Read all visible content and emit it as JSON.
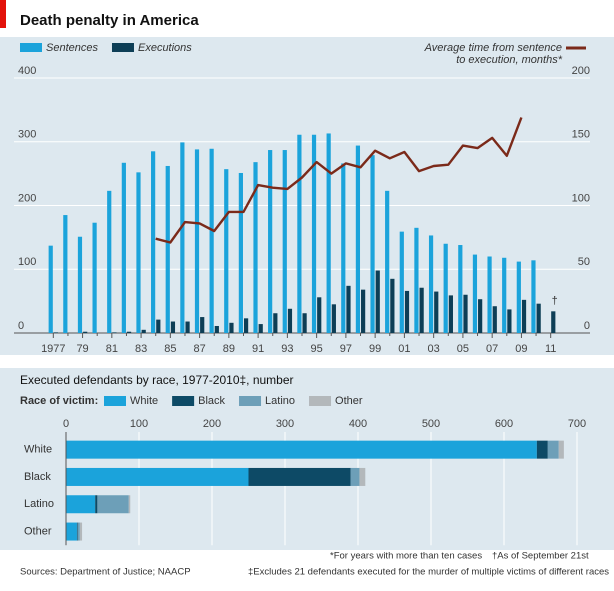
{
  "title": "Death penalty in America",
  "footnotes": [
    "*For years with more than ten cases",
    "†As of September 21st",
    "Sources: Department of Justice; NAACP",
    "‡Excludes 21 defendants executed for the murder of multiple victims of different races"
  ],
  "chart_data": [
    {
      "type": "bar",
      "categories": [
        "1977",
        null,
        "79",
        null,
        "81",
        null,
        "83",
        null,
        "85",
        null,
        "87",
        null,
        "89",
        null,
        "91",
        null,
        "93",
        null,
        "95",
        null,
        "97",
        null,
        "99",
        null,
        "01",
        null,
        "03",
        null,
        "05",
        null,
        "07",
        null,
        "09",
        null,
        "11"
      ],
      "series": [
        {
          "name": "Sentences",
          "color": "#1ba3db",
          "values": [
            137,
            185,
            151,
            173,
            223,
            267,
            252,
            285,
            262,
            299,
            288,
            289,
            257,
            251,
            268,
            287,
            287,
            311,
            311,
            313,
            266,
            294,
            279,
            223,
            159,
            165,
            153,
            140,
            138,
            123,
            120,
            118,
            112,
            114,
            null
          ]
        },
        {
          "name": "Executions",
          "color": "#0d3e56",
          "values": [
            1,
            0,
            2,
            0,
            1,
            2,
            5,
            21,
            18,
            18,
            25,
            11,
            16,
            23,
            14,
            31,
            38,
            31,
            56,
            45,
            74,
            68,
            98,
            85,
            66,
            71,
            65,
            59,
            60,
            53,
            42,
            37,
            52,
            46,
            34
          ]
        },
        {
          "name": [
            "Average time from sentence",
            "to execution, months*"
          ],
          "color": "#7b2a1a",
          "axis": "y2",
          "kind": "line",
          "values": [
            null,
            null,
            null,
            null,
            null,
            null,
            null,
            74,
            71,
            87,
            86,
            80,
            95,
            95,
            116,
            114,
            113,
            122,
            134,
            125,
            133,
            130,
            143,
            137,
            142,
            127,
            131,
            132,
            147,
            145,
            153,
            139,
            169,
            null,
            null
          ]
        }
      ],
      "annotations": [
        {
          "text": "†",
          "category": 34
        }
      ],
      "ylim": [
        0,
        400
      ],
      "yticks": [
        0,
        100,
        200,
        300,
        400
      ],
      "y2lim": [
        0,
        200
      ],
      "y2ticks": [
        0,
        50,
        100,
        150,
        200
      ],
      "grid": true
    },
    {
      "type": "bar",
      "orientation": "horizontal",
      "stacked": true,
      "title": "Executed defendants by race, 1977-2010‡, number",
      "legend_title": "Race of victim:",
      "categories": [
        "White",
        "Black",
        "Latino",
        "Other"
      ],
      "series": [
        {
          "name": "White",
          "color": "#1ba3db",
          "values": [
            645,
            250,
            40,
            15
          ]
        },
        {
          "name": "Black",
          "color": "#0d4a66",
          "values": [
            15,
            140,
            3,
            1
          ]
        },
        {
          "name": "Latino",
          "color": "#6d9fb8",
          "values": [
            15,
            12,
            43,
            3
          ]
        },
        {
          "name": "Other",
          "color": "#b3b8bb",
          "values": [
            7,
            8,
            2,
            3
          ]
        }
      ],
      "xlim": [
        0,
        700
      ],
      "xticks": [
        0,
        100,
        200,
        300,
        400,
        500,
        600,
        700
      ],
      "grid": true
    }
  ]
}
